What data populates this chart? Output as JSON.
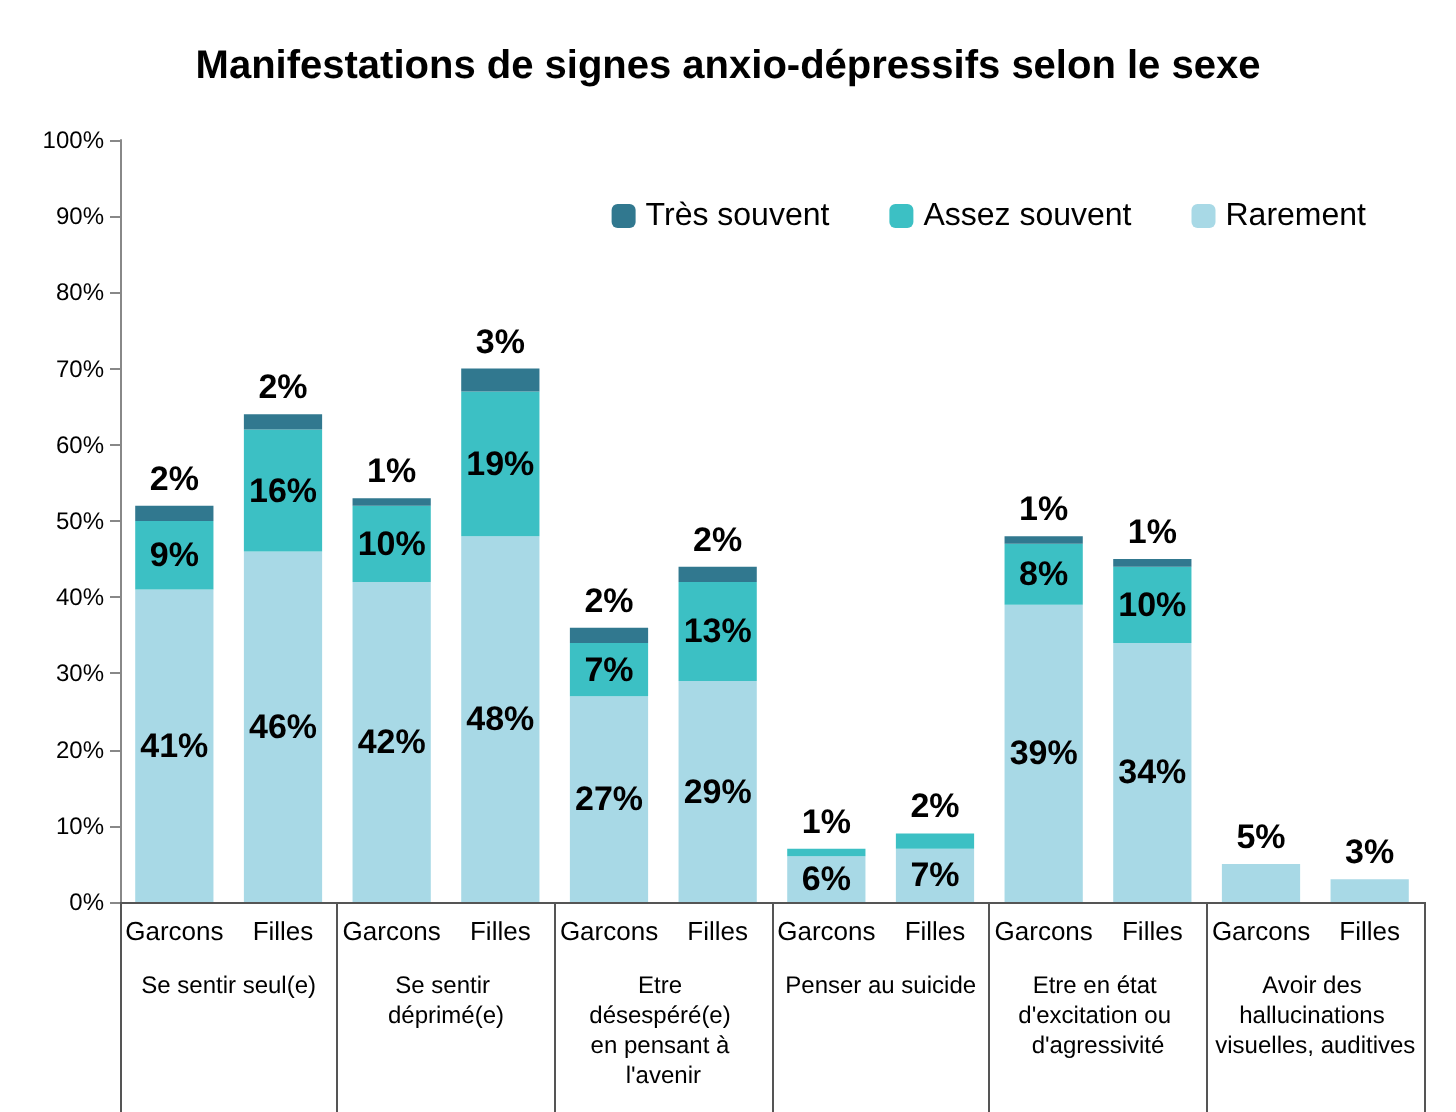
{
  "chart_data": {
    "type": "bar",
    "title": "Manifestations de signes anxio-dépressifs selon le sexe",
    "categories": [
      "Garcons",
      "Filles",
      "Garcons",
      "Filles",
      "Garcons",
      "Filles",
      "Garcons",
      "Filles",
      "Garcons",
      "Filles",
      "Garcons",
      "Filles"
    ],
    "stacked": true,
    "series": [
      {
        "name": "Rarement",
        "color": "#a8d9e6",
        "values": [
          41,
          46,
          42,
          48,
          27,
          29,
          6,
          7,
          39,
          34,
          5,
          3
        ],
        "value_labels": [
          "41%",
          "46%",
          "42%",
          "48%",
          "27%",
          "29%",
          "6%",
          "7%",
          "39%",
          "34%",
          "5%",
          "3%"
        ]
      },
      {
        "name": "Assez souvent",
        "color": "#3cc0c4",
        "values": [
          9,
          16,
          10,
          19,
          7,
          13,
          1,
          2,
          8,
          10,
          null,
          null
        ],
        "value_labels": [
          "9%",
          "16%",
          "10%",
          "19%",
          "7%",
          "13%",
          "1%",
          "2%",
          "8%",
          "10%",
          null,
          null
        ]
      },
      {
        "name": "Très souvent",
        "color": "#31788f",
        "values": [
          2,
          2,
          1,
          3,
          2,
          2,
          null,
          null,
          1,
          1,
          null,
          null
        ],
        "value_labels": [
          "2%",
          "2%",
          "1%",
          "3%",
          "2%",
          "2%",
          null,
          null,
          "1%",
          "1%",
          null,
          null
        ]
      }
    ],
    "ylim": [
      0,
      100
    ],
    "yticks": [
      {
        "value": 0,
        "label": "0%"
      },
      {
        "value": 10,
        "label": "10%"
      },
      {
        "value": 20,
        "label": "20%"
      },
      {
        "value": 30,
        "label": "30%"
      },
      {
        "value": 40,
        "label": "40%"
      },
      {
        "value": 50,
        "label": "50%"
      },
      {
        "value": 60,
        "label": "60%"
      },
      {
        "value": 70,
        "label": "70%"
      },
      {
        "value": 80,
        "label": "80%"
      },
      {
        "value": 90,
        "label": "90%"
      },
      {
        "value": 100,
        "label": "100%"
      }
    ],
    "annotations": [
      "Se sentir seul(e)",
      "Se sentir déprimé(e)",
      "Etre désespéré(e) en pensant à l'avenir",
      "Penser au suicide",
      "Etre en état d'excitation ou d'agressivité",
      "Avoir des hallucinations visuelles, auditives"
    ],
    "legend": "top right",
    "grid": false
  }
}
